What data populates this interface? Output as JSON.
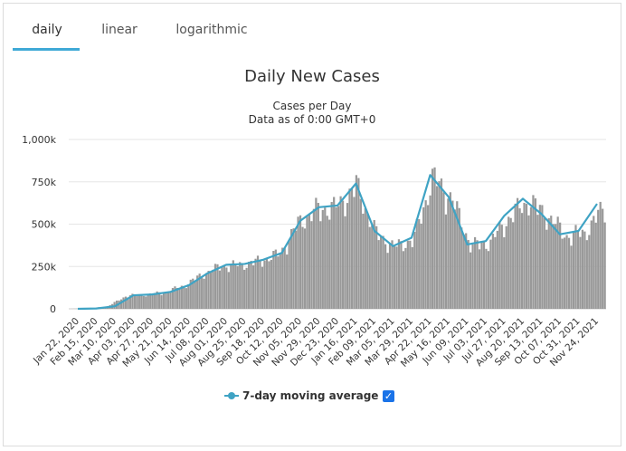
{
  "tabs": [
    {
      "label": "daily",
      "active": true
    },
    {
      "label": "linear",
      "active": false
    },
    {
      "label": "logarithmic",
      "active": false
    }
  ],
  "legend": {
    "label": "7-day moving average",
    "checked": true,
    "check_glyph": "✓"
  },
  "colors": {
    "bars": "#999999",
    "line": "#3fa3c4",
    "tab_accent": "#3fa9d6",
    "checkbox": "#1a73e8"
  },
  "chart_data": {
    "type": "bar",
    "title": "Daily New Cases",
    "subtitle_lines": [
      "Cases per Day",
      "Data as of 0:00 GMT+0"
    ],
    "ylim": [
      0,
      1000000
    ],
    "y_ticks": [
      0,
      250000,
      500000,
      750000,
      1000000
    ],
    "y_tick_labels": [
      "0",
      "250k",
      "500k",
      "750k",
      "1,000k"
    ],
    "x_tick_labels": [
      "Jan 22, 2020",
      "Feb 15, 2020",
      "Mar 10, 2020",
      "Apr 03, 2020",
      "Apr 27, 2020",
      "May 21, 2020",
      "Jun 14, 2020",
      "Jul 08, 2020",
      "Aug 01, 2020",
      "Aug 25, 2020",
      "Sep 18, 2020",
      "Oct 12, 2020",
      "Nov 05, 2020",
      "Nov 29, 2020",
      "Dec 23, 2020",
      "Jan 16, 2021",
      "Feb 09, 2021",
      "Mar 05, 2021",
      "Mar 29, 2021",
      "Apr 22, 2021",
      "May 16, 2021",
      "Jun 09, 2021",
      "Jul 03, 2021",
      "Jul 27, 2021",
      "Aug 20, 2021",
      "Sep 13, 2021",
      "Oct 07, 2021",
      "Oct 31, 2021",
      "Nov 24, 2021"
    ],
    "grid": true,
    "series": [
      {
        "name": "7-day moving average",
        "type": "line",
        "x": [
          "Jan 22, 2020",
          "Feb 15, 2020",
          "Mar 10, 2020",
          "Apr 03, 2020",
          "Apr 27, 2020",
          "May 21, 2020",
          "Jun 14, 2020",
          "Jul 08, 2020",
          "Aug 01, 2020",
          "Aug 25, 2020",
          "Sep 18, 2020",
          "Oct 12, 2020",
          "Nov 05, 2020",
          "Nov 29, 2020",
          "Dec 23, 2020",
          "Jan 16, 2021",
          "Feb 09, 2021",
          "Mar 05, 2021",
          "Mar 29, 2021",
          "Apr 22, 2021",
          "May 16, 2021",
          "Jun 09, 2021",
          "Jul 03, 2021",
          "Jul 27, 2021",
          "Aug 20, 2021",
          "Sep 13, 2021",
          "Oct 07, 2021",
          "Oct 31, 2021",
          "Nov 24, 2021"
        ],
        "values": [
          0,
          2000,
          15000,
          80000,
          85000,
          100000,
          140000,
          210000,
          260000,
          265000,
          290000,
          330000,
          520000,
          600000,
          610000,
          740000,
          460000,
          370000,
          420000,
          790000,
          660000,
          380000,
          400000,
          550000,
          650000,
          560000,
          440000,
          460000,
          620000
        ]
      }
    ]
  }
}
